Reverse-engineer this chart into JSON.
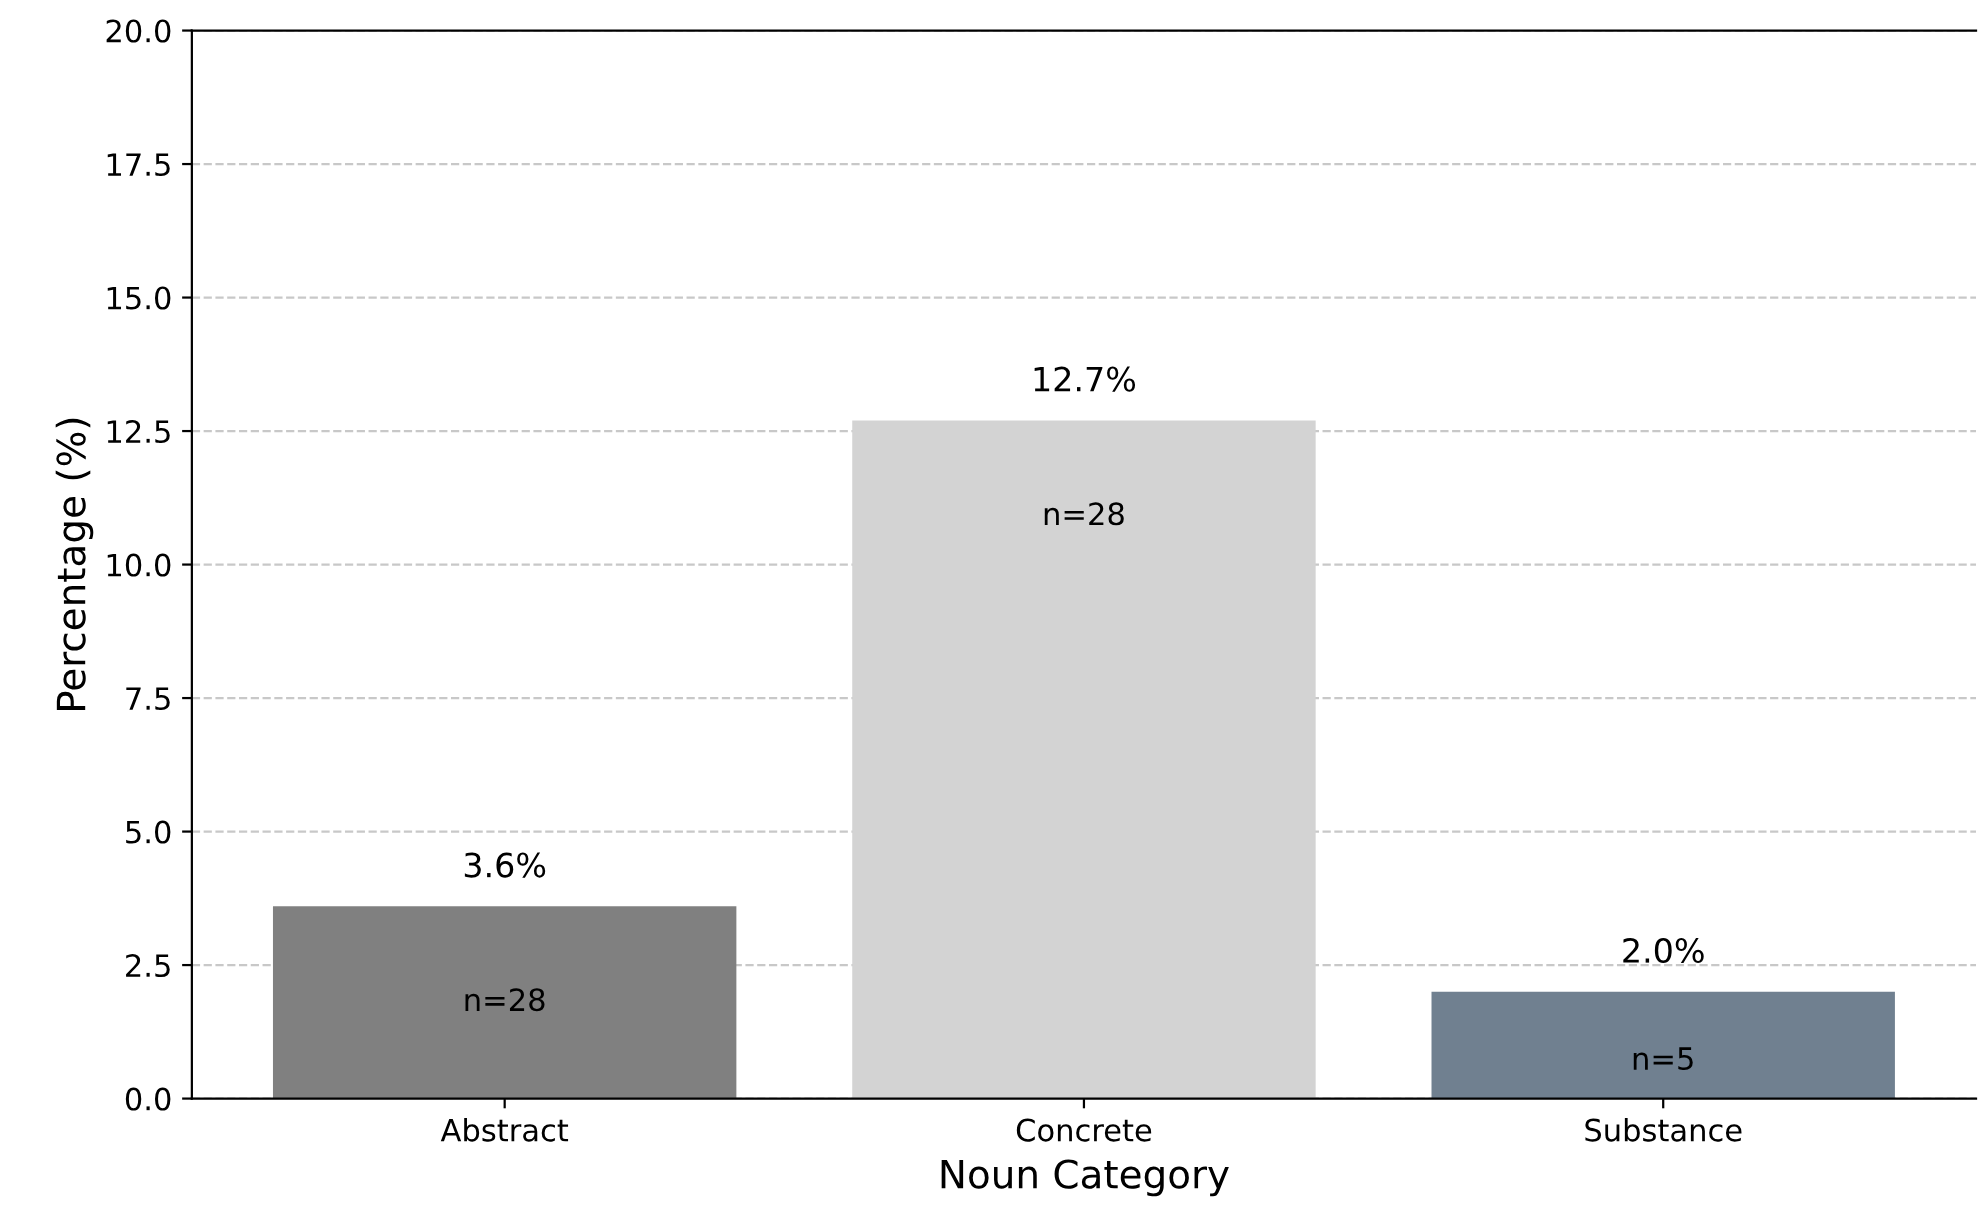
{
  "chart_data": {
    "type": "bar",
    "xlabel": "Noun Category",
    "ylabel": "Percentage (%)",
    "categories": [
      "Abstract",
      "Concrete",
      "Substance"
    ],
    "values": [
      3.6,
      12.7,
      2.0
    ],
    "colors": [
      "#808080",
      "#d3d3d3",
      "#708090"
    ],
    "value_labels": [
      "3.6%",
      "12.7%",
      "2.0%"
    ],
    "annotations": [
      "n=28",
      "n=28",
      "n=5"
    ],
    "ylim": [
      0,
      20
    ],
    "yticks": [
      {
        "value": 0,
        "label": "0.0"
      },
      {
        "value": 2.5,
        "label": "2.5"
      },
      {
        "value": 5,
        "label": "5.0"
      },
      {
        "value": 7.5,
        "label": "7.5"
      },
      {
        "value": 10,
        "label": "10.0"
      },
      {
        "value": 12.5,
        "label": "12.5"
      },
      {
        "value": 15,
        "label": "15.0"
      },
      {
        "value": 17.5,
        "label": "17.5"
      },
      {
        "value": 20,
        "label": "20.0"
      }
    ],
    "grid": "y",
    "line_style": "dashed",
    "legend": false
  }
}
